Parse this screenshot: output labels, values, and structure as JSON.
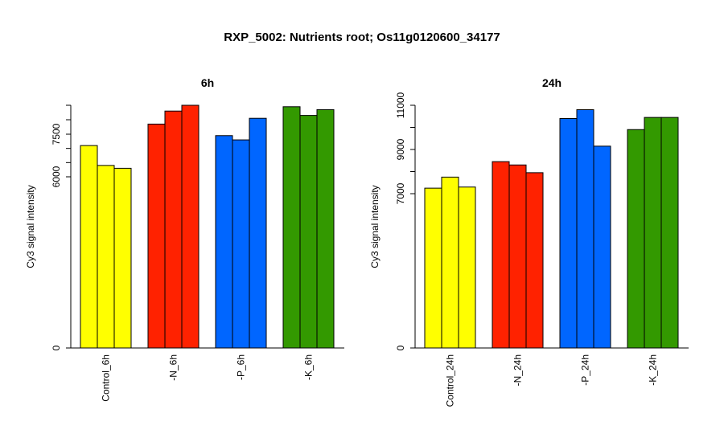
{
  "title": "RXP_5002: Nutrients root; Os11g0120600_34177",
  "chart_data": [
    {
      "type": "bar",
      "title": "6h",
      "ylabel": "Cy3 signal intensity",
      "ylim": [
        0,
        8500
      ],
      "yticks": [
        0,
        6000,
        7500
      ],
      "categories": [
        "Control_6h",
        "-N_6h",
        "-P_6h",
        "-K_6h"
      ],
      "colors": [
        "#ffff00",
        "#ff2200",
        "#0066ff",
        "#339900"
      ],
      "groups": [
        {
          "category": "Control_6h",
          "values": [
            7100,
            6400,
            6300
          ]
        },
        {
          "category": "-N_6h",
          "values": [
            7850,
            8300,
            8500
          ]
        },
        {
          "category": "-P_6h",
          "values": [
            7450,
            7300,
            8050
          ]
        },
        {
          "category": "-K_6h",
          "values": [
            8450,
            8150,
            8350
          ]
        }
      ]
    },
    {
      "type": "bar",
      "title": "24h",
      "ylabel": "Cy3 signal intensity",
      "ylim": [
        0,
        11000
      ],
      "yticks": [
        0,
        7000,
        9000,
        11000
      ],
      "categories": [
        "Control_24h",
        "-N_24h",
        "-P_24h",
        "-K_24h"
      ],
      "colors": [
        "#ffff00",
        "#ff2200",
        "#0066ff",
        "#339900"
      ],
      "groups": [
        {
          "category": "Control_24h",
          "values": [
            7250,
            7750,
            7300
          ]
        },
        {
          "category": "-N_24h",
          "values": [
            8450,
            8300,
            7950
          ]
        },
        {
          "category": "-P_24h",
          "values": [
            10400,
            10800,
            9150
          ]
        },
        {
          "category": "-K_24h",
          "values": [
            9900,
            10450,
            10450
          ]
        }
      ]
    }
  ]
}
